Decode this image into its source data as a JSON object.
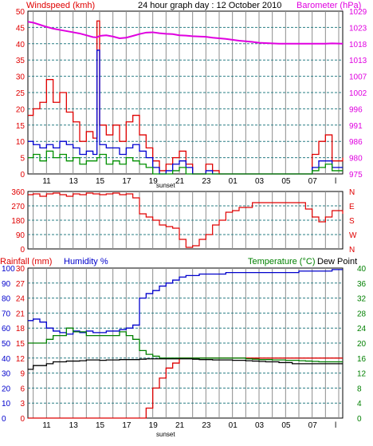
{
  "header": {
    "left_label": "Windspeed (kmh)",
    "title": "24 hour graph day : 12 October 2010",
    "right_label": "Barometer (hPa)"
  },
  "bottom_header": {
    "left_label": "Rainfall (mm)",
    "humidity_label": "Humidity %",
    "temp_label": "Temperature (°C)",
    "dew_label": "Dew Point"
  },
  "sunset_label": "sunset",
  "colors": {
    "wind": "#e00000",
    "baro": "#e000e0",
    "gust": "#0000d0",
    "avg": "#009000",
    "grid": "#2a7f86",
    "rain": "#dd0000",
    "humidity": "#0000cc",
    "temp": "#008000",
    "dew": "#000000"
  },
  "chart_data": [
    {
      "type": "line",
      "title": "24 hour graph day : 12 October 2010",
      "ylabel": "Windspeed (kmh)",
      "y2label": "Barometer (hPa)",
      "x_ticks": [
        "11",
        "13",
        "15",
        "17",
        "19",
        "21",
        "23",
        "01",
        "03",
        "05",
        "07",
        "l"
      ],
      "y_ticks": [
        0,
        5,
        10,
        15,
        20,
        25,
        30,
        35,
        40,
        45,
        50
      ],
      "y2_ticks": [
        975,
        980,
        986,
        991,
        996,
        1002,
        1007,
        1013,
        1018,
        1023,
        1029
      ],
      "ylim": [
        0,
        50
      ],
      "y2lim": [
        975,
        1029
      ],
      "x_hours": [
        9.6,
        10,
        10.5,
        11,
        11.5,
        12,
        12.5,
        13,
        13.5,
        14,
        14.5,
        14.8,
        15,
        15.5,
        16,
        16.5,
        17,
        17.5,
        18,
        18.5,
        19,
        19.5,
        20,
        20.5,
        21,
        21.5,
        22,
        22.5,
        23,
        23.5,
        24,
        24.5,
        25,
        25.5,
        26,
        26.5,
        27,
        27.5,
        28,
        28.5,
        29,
        29.5,
        30,
        30.5,
        31,
        31.5,
        32,
        32.5,
        33.3
      ],
      "series": [
        {
          "name": "Windspeed",
          "values": [
            18,
            20,
            22,
            29,
            22,
            25,
            19,
            16,
            10,
            13,
            11,
            47,
            15,
            12,
            15,
            10,
            16,
            18,
            12,
            8,
            4,
            1,
            3,
            5,
            7,
            3,
            0,
            0,
            3,
            1,
            0,
            0,
            0,
            0,
            0,
            0,
            0,
            0,
            0,
            0,
            0,
            0,
            0,
            0,
            6,
            10,
            12,
            4,
            5
          ]
        },
        {
          "name": "Gust",
          "values": [
            10,
            9,
            8,
            9,
            8,
            10,
            9,
            8,
            6,
            7,
            6,
            38,
            9,
            8,
            8,
            6,
            8,
            9,
            7,
            5,
            2,
            0,
            1,
            3,
            4,
            2,
            0,
            0,
            1,
            0,
            0,
            0,
            0,
            0,
            0,
            0,
            0,
            0,
            0,
            0,
            0,
            0,
            0,
            0,
            2,
            4,
            4,
            2,
            2
          ]
        },
        {
          "name": "Average",
          "values": [
            5,
            6,
            4,
            7,
            5,
            6,
            4,
            5,
            3,
            4,
            4,
            5,
            6,
            3,
            4,
            3,
            5,
            4,
            3,
            2,
            0,
            0,
            0,
            1,
            2,
            0,
            0,
            0,
            0,
            0,
            0,
            0,
            0,
            0,
            0,
            0,
            0,
            0,
            0,
            0,
            0,
            0,
            0,
            0,
            1,
            2,
            3,
            1,
            1
          ]
        },
        {
          "name": "Barometer",
          "values": [
            1025.5,
            1025.2,
            1024.5,
            1023.8,
            1023.2,
            1022.8,
            1022.4,
            1022.0,
            1021.6,
            1021.0,
            1020.4,
            1020.3,
            1020.8,
            1021.0,
            1020.6,
            1020.0,
            1020.2,
            1020.8,
            1021.4,
            1021.9,
            1022.0,
            1021.7,
            1021.5,
            1021.4,
            1021.0,
            1020.9,
            1020.7,
            1020.6,
            1020.5,
            1020.2,
            1020.0,
            1019.8,
            1019.5,
            1019.2,
            1019.0,
            1018.8,
            1018.5,
            1018.4,
            1018.3,
            1018.2,
            1018.2,
            1018.2,
            1018.2,
            1018.2,
            1018.2,
            1018.2,
            1018.2,
            1018.3,
            1018.2
          ]
        }
      ]
    },
    {
      "type": "line",
      "ylabel": "",
      "y_ticks": [
        0,
        90,
        180,
        270,
        360
      ],
      "y2_ticks": [
        "N",
        "W",
        "S",
        "E",
        "N"
      ],
      "ylim": [
        0,
        360
      ],
      "x_hours": [
        9.6,
        10,
        10.5,
        11,
        11.5,
        12,
        12.5,
        13,
        13.5,
        14,
        14.5,
        15,
        15.5,
        16,
        16.5,
        17,
        17.5,
        18,
        18.5,
        19,
        19.5,
        20,
        20.5,
        21,
        21.5,
        22,
        22.5,
        23,
        23.5,
        24,
        24.5,
        25,
        25.5,
        26,
        26.5,
        27,
        27.5,
        28,
        28.5,
        29,
        29.5,
        30,
        30.5,
        31,
        31.5,
        32,
        32.5,
        33.3
      ],
      "series": [
        {
          "name": "Direction",
          "values": [
            340,
            345,
            330,
            345,
            350,
            340,
            330,
            345,
            340,
            350,
            345,
            340,
            345,
            350,
            340,
            345,
            320,
            220,
            200,
            180,
            150,
            140,
            130,
            60,
            10,
            20,
            60,
            90,
            150,
            180,
            230,
            240,
            260,
            260,
            290,
            290,
            290,
            290,
            290,
            290,
            290,
            290,
            250,
            200,
            170,
            200,
            240,
            220
          ]
        }
      ]
    },
    {
      "type": "line",
      "ylabel": "Rainfall (mm)",
      "y2label": "Temperature (°C)",
      "y_ticks": [
        0,
        3,
        6,
        9,
        12,
        15,
        18,
        21,
        24,
        27,
        30
      ],
      "y_ticks_humidity": [
        0,
        10,
        20,
        30,
        40,
        50,
        60,
        70,
        80,
        90,
        100
      ],
      "y2_ticks": [
        0,
        4,
        8,
        12,
        16,
        20,
        24,
        28,
        32,
        36,
        40
      ],
      "ylim": [
        0,
        30
      ],
      "y2lim": [
        0,
        40
      ],
      "x_hours": [
        9.6,
        10,
        10.5,
        11,
        11.5,
        12,
        12.5,
        13,
        13.5,
        14,
        14.5,
        15,
        15.5,
        16,
        16.5,
        17,
        17.5,
        18,
        18.5,
        19,
        19.5,
        20,
        20.5,
        21,
        21.5,
        22,
        22.5,
        23,
        23.5,
        24,
        24.5,
        25,
        25.5,
        26,
        26.5,
        27,
        27.5,
        28,
        28.5,
        29,
        29.5,
        30,
        30.5,
        31,
        31.5,
        32,
        32.5,
        33.3
      ],
      "series": [
        {
          "name": "Rainfall",
          "values": [
            0,
            0,
            0,
            0,
            0,
            0,
            0,
            0,
            0,
            0,
            0,
            0,
            0,
            0,
            0,
            0,
            0,
            0,
            2,
            6,
            8,
            10,
            11,
            12,
            12,
            12,
            12,
            12,
            12,
            12,
            12,
            12,
            12,
            12,
            12,
            12,
            12,
            12,
            12,
            12,
            12,
            12,
            12,
            12,
            12,
            12,
            12,
            12
          ]
        },
        {
          "name": "Humidity",
          "values": [
            65,
            66,
            64,
            60,
            58,
            57,
            56,
            58,
            57,
            58,
            57,
            57,
            58,
            58,
            59,
            60,
            62,
            80,
            83,
            85,
            88,
            90,
            92,
            94,
            95,
            95,
            96,
            96,
            96,
            96,
            97,
            97,
            97,
            97,
            97,
            97,
            97,
            97,
            97,
            97,
            97,
            98,
            98,
            98,
            98,
            98,
            99,
            99
          ]
        },
        {
          "name": "Temperature",
          "values": [
            20,
            20,
            20,
            21,
            22,
            22,
            24,
            23,
            23,
            22,
            22,
            22,
            22,
            22,
            23,
            22,
            21,
            18,
            17,
            16.5,
            16,
            16,
            16,
            16,
            16,
            16,
            16,
            16,
            16,
            16,
            16,
            16,
            16,
            15.8,
            15.7,
            15.6,
            15.6,
            15.5,
            15.5,
            15.4,
            15.4,
            15.3,
            15.2,
            15.1,
            15,
            15,
            15,
            15
          ]
        },
        {
          "name": "Dew Point",
          "values": [
            13,
            14,
            14,
            14.5,
            15,
            15,
            15.2,
            15.2,
            15.3,
            15.5,
            15.5,
            15.4,
            15.5,
            15.5,
            15.6,
            15.6,
            15.6,
            15.7,
            15.8,
            15.8,
            15.8,
            15.8,
            15.8,
            15.8,
            15.8,
            15.7,
            15.6,
            15.6,
            15.5,
            15.5,
            15.5,
            15.4,
            15.4,
            15.3,
            15.2,
            15.1,
            15,
            15,
            14.8,
            14.8,
            14.5,
            14.5,
            14.5,
            14.5,
            14.5,
            14.5,
            14.5,
            14.5
          ]
        }
      ]
    }
  ]
}
